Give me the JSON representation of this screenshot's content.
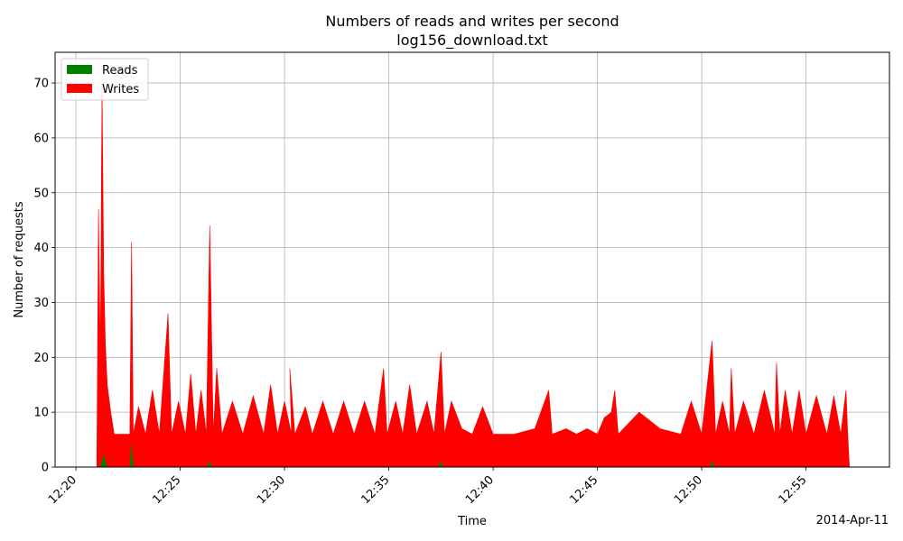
{
  "chart_data": {
    "type": "area",
    "title": "Numbers of reads and writes per second",
    "subtitle": "log156_download.txt",
    "xlabel": "Time",
    "ylabel": "Number of requests",
    "date_label": "2014-Apr-11",
    "x_ticks": [
      "12:20",
      "12:25",
      "12:30",
      "12:35",
      "12:40",
      "12:45",
      "12:50",
      "12:55"
    ],
    "x_range": [
      "12:19:00",
      "12:59:00"
    ],
    "ylim": [
      0,
      75.6
    ],
    "y_ticks": [
      0,
      10,
      20,
      30,
      40,
      50,
      60,
      70
    ],
    "grid": true,
    "legend_position": "top-left",
    "series": [
      {
        "name": "Reads",
        "color": "#008000",
        "points": [
          [
            "12:21:10",
            0
          ],
          [
            "12:21:20",
            2
          ],
          [
            "12:21:30",
            0
          ],
          [
            "12:22:35",
            0
          ],
          [
            "12:22:40",
            4
          ],
          [
            "12:22:45",
            0
          ],
          [
            "12:26:20",
            0
          ],
          [
            "12:26:25",
            1
          ],
          [
            "12:26:30",
            0
          ],
          [
            "12:37:25",
            0
          ],
          [
            "12:37:30",
            1
          ],
          [
            "12:37:35",
            0
          ],
          [
            "12:50:25",
            0
          ],
          [
            "12:50:30",
            1
          ],
          [
            "12:50:35",
            0
          ]
        ]
      },
      {
        "name": "Writes",
        "color": "#ff0000",
        "points": [
          [
            "12:21:00",
            0
          ],
          [
            "12:21:05",
            47
          ],
          [
            "12:21:10",
            20
          ],
          [
            "12:21:15",
            70
          ],
          [
            "12:21:20",
            35
          ],
          [
            "12:21:25",
            22
          ],
          [
            "12:21:30",
            15
          ],
          [
            "12:21:40",
            10
          ],
          [
            "12:21:50",
            6
          ],
          [
            "12:22:00",
            6
          ],
          [
            "12:22:20",
            6
          ],
          [
            "12:22:35",
            6
          ],
          [
            "12:22:40",
            41
          ],
          [
            "12:22:45",
            6
          ],
          [
            "12:23:00",
            11
          ],
          [
            "12:23:20",
            6
          ],
          [
            "12:23:40",
            14
          ],
          [
            "12:24:00",
            6
          ],
          [
            "12:24:25",
            28
          ],
          [
            "12:24:35",
            6
          ],
          [
            "12:24:55",
            12
          ],
          [
            "12:25:15",
            6
          ],
          [
            "12:25:30",
            17
          ],
          [
            "12:25:45",
            6
          ],
          [
            "12:26:00",
            14
          ],
          [
            "12:26:15",
            6
          ],
          [
            "12:26:25",
            44
          ],
          [
            "12:26:35",
            6
          ],
          [
            "12:26:45",
            18
          ],
          [
            "12:27:00",
            6
          ],
          [
            "12:27:30",
            12
          ],
          [
            "12:28:00",
            6
          ],
          [
            "12:28:30",
            13
          ],
          [
            "12:29:00",
            6
          ],
          [
            "12:29:20",
            15
          ],
          [
            "12:29:40",
            6
          ],
          [
            "12:30:00",
            12
          ],
          [
            "12:30:20",
            6
          ],
          [
            "12:30:15",
            18
          ],
          [
            "12:30:30",
            6
          ],
          [
            "12:31:00",
            11
          ],
          [
            "12:31:20",
            6
          ],
          [
            "12:31:50",
            12
          ],
          [
            "12:32:20",
            6
          ],
          [
            "12:32:50",
            12
          ],
          [
            "12:33:20",
            6
          ],
          [
            "12:33:50",
            12
          ],
          [
            "12:34:20",
            6
          ],
          [
            "12:34:45",
            18
          ],
          [
            "12:34:55",
            6
          ],
          [
            "12:35:20",
            12
          ],
          [
            "12:35:40",
            6
          ],
          [
            "12:36:00",
            15
          ],
          [
            "12:36:20",
            6
          ],
          [
            "12:36:50",
            12
          ],
          [
            "12:37:10",
            6
          ],
          [
            "12:37:30",
            21
          ],
          [
            "12:37:40",
            6
          ],
          [
            "12:38:00",
            12
          ],
          [
            "12:38:30",
            7
          ],
          [
            "12:39:00",
            6
          ],
          [
            "12:39:30",
            11
          ],
          [
            "12:40:00",
            6
          ],
          [
            "12:41:00",
            6
          ],
          [
            "12:42:00",
            7
          ],
          [
            "12:42:40",
            14
          ],
          [
            "12:42:50",
            6
          ],
          [
            "12:43:30",
            7
          ],
          [
            "12:44:00",
            6
          ],
          [
            "12:44:30",
            7
          ],
          [
            "12:45:00",
            6
          ],
          [
            "12:45:20",
            9
          ],
          [
            "12:45:40",
            10
          ],
          [
            "12:45:50",
            14
          ],
          [
            "12:46:00",
            6
          ],
          [
            "12:47:00",
            10
          ],
          [
            "12:48:00",
            7
          ],
          [
            "12:49:00",
            6
          ],
          [
            "12:49:30",
            12
          ],
          [
            "12:50:00",
            6
          ],
          [
            "12:50:30",
            23
          ],
          [
            "12:50:40",
            6
          ],
          [
            "12:51:00",
            12
          ],
          [
            "12:51:20",
            6
          ],
          [
            "12:51:25",
            18
          ],
          [
            "12:51:35",
            6
          ],
          [
            "12:52:00",
            12
          ],
          [
            "12:52:30",
            6
          ],
          [
            "12:53:00",
            14
          ],
          [
            "12:53:30",
            6
          ],
          [
            "12:53:35",
            19
          ],
          [
            "12:53:45",
            6
          ],
          [
            "12:54:00",
            14
          ],
          [
            "12:54:20",
            6
          ],
          [
            "12:54:40",
            14
          ],
          [
            "12:55:00",
            6
          ],
          [
            "12:55:30",
            13
          ],
          [
            "12:56:00",
            6
          ],
          [
            "12:56:20",
            13
          ],
          [
            "12:56:40",
            6
          ],
          [
            "12:56:55",
            14
          ],
          [
            "12:57:00",
            6
          ],
          [
            "12:57:05",
            0
          ]
        ]
      }
    ]
  }
}
